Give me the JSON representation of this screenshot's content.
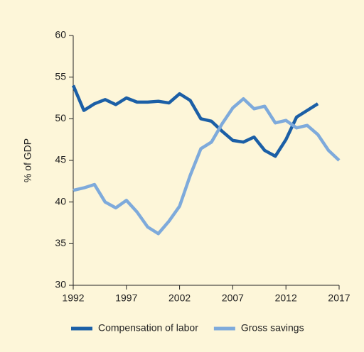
{
  "chart_data": {
    "type": "line",
    "y_label": "% of GDP",
    "x": [
      1992,
      1993,
      1994,
      1995,
      1996,
      1997,
      1998,
      1999,
      2000,
      2001,
      2002,
      2003,
      2004,
      2005,
      2006,
      2007,
      2008,
      2009,
      2010,
      2011,
      2012,
      2013,
      2014,
      2015,
      2016,
      2017
    ],
    "series": [
      {
        "name": "Compensation of labor",
        "color": "#1b5fa6",
        "values": [
          54.0,
          51.0,
          51.8,
          52.3,
          51.7,
          52.5,
          52.0,
          52.0,
          52.1,
          51.9,
          53.0,
          52.2,
          50.0,
          49.7,
          48.5,
          47.4,
          47.2,
          47.8,
          46.2,
          45.5,
          47.5,
          50.2,
          51.0,
          51.8,
          null,
          null
        ]
      },
      {
        "name": "Gross savings",
        "color": "#7eaadb",
        "values": [
          41.4,
          41.7,
          42.1,
          40.0,
          39.3,
          40.2,
          38.8,
          37.0,
          36.2,
          37.7,
          39.5,
          43.2,
          46.4,
          47.2,
          49.4,
          51.3,
          52.4,
          51.2,
          51.5,
          49.5,
          49.8,
          48.9,
          49.2,
          48.1,
          46.2,
          45.0
        ]
      }
    ],
    "xlim": [
      1992,
      2017
    ],
    "xticks": [
      1992,
      1997,
      2002,
      2007,
      2012,
      2017
    ],
    "ylim": [
      30,
      60
    ],
    "yticks": [
      30,
      35,
      40,
      45,
      50,
      55,
      60
    ],
    "grid": false,
    "legend": "bottom"
  }
}
